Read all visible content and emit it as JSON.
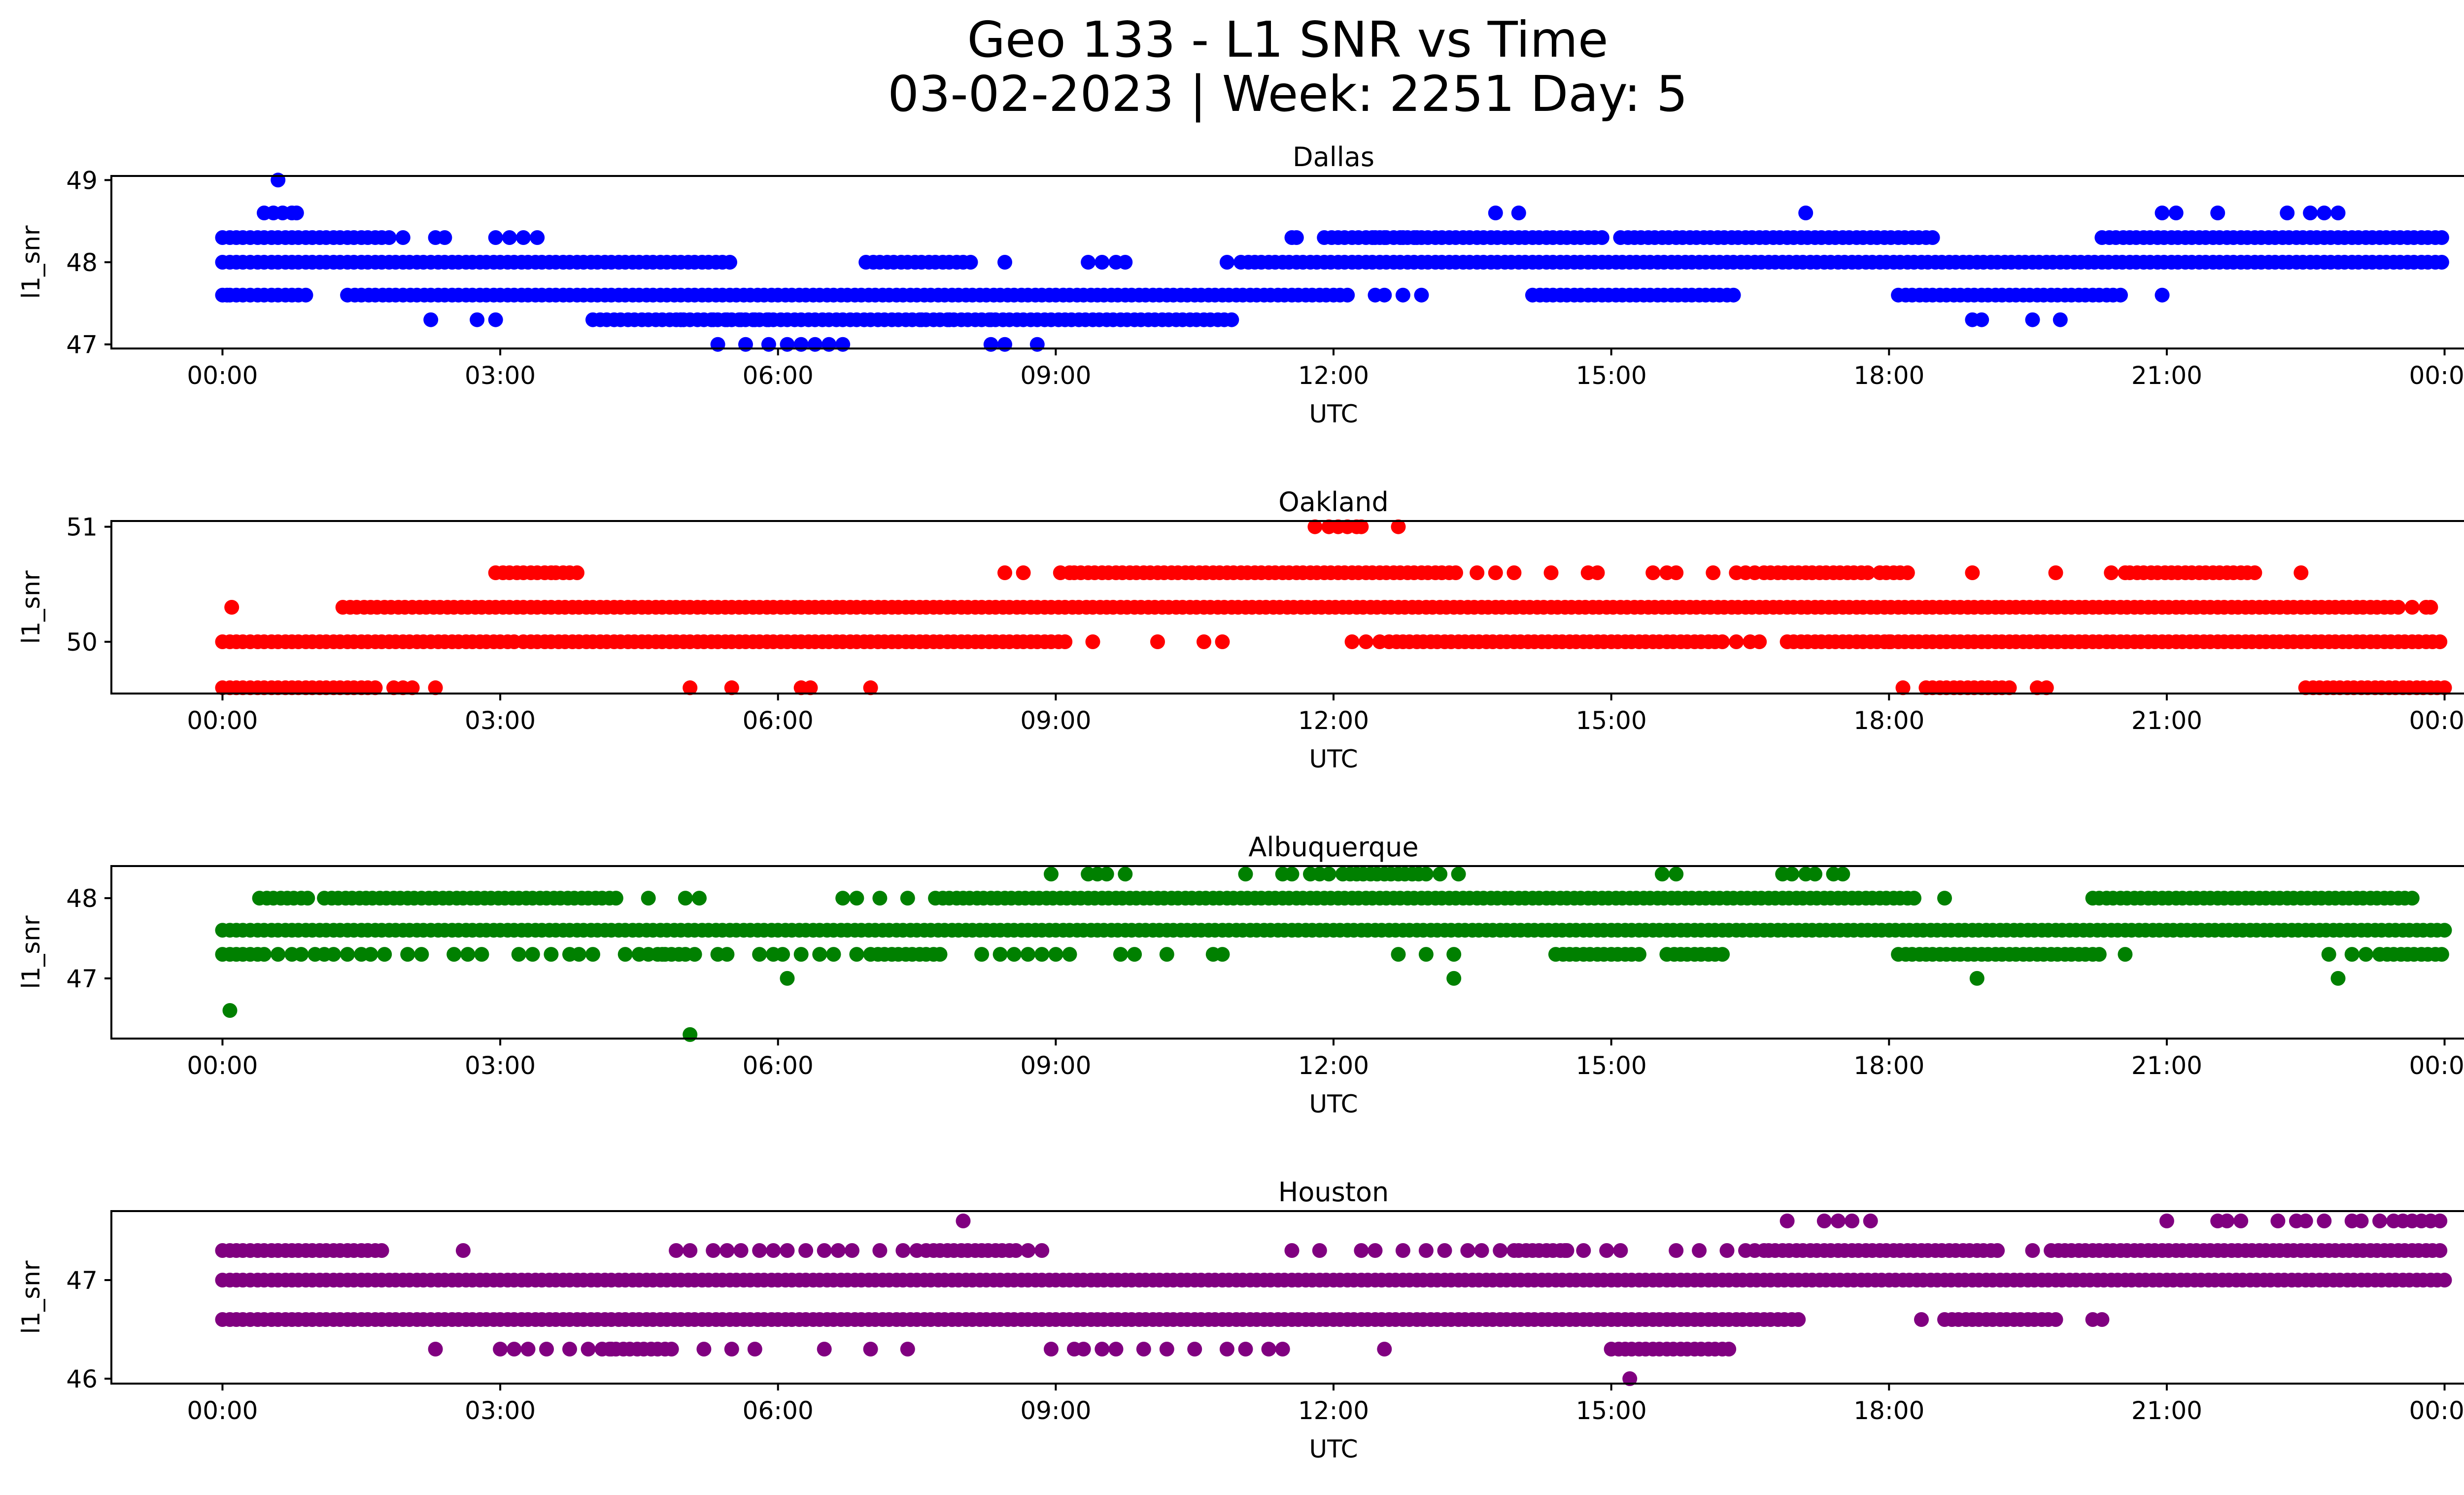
{
  "figure": {
    "title_line1": "Geo 133 - L1 SNR vs Time",
    "title_line2": "03-02-2023 | Week: 2251 Day: 5"
  },
  "chart_data": [
    {
      "type": "scatter",
      "title": "Dallas",
      "xlabel": "UTC",
      "ylabel": "l1_snr",
      "color": "#0000ff",
      "xlim": [
        -1.2,
        25.2
      ],
      "xticks": [
        "00:00",
        "03:00",
        "06:00",
        "09:00",
        "12:00",
        "15:00",
        "18:00",
        "21:00",
        "00:00"
      ],
      "ylim": [
        46.95,
        49.05
      ],
      "yticks": [
        47,
        48,
        49
      ],
      "series": [
        {
          "value": 47.0,
          "x_hours": [
            5.35,
            5.65,
            5.9,
            6.1,
            6.25,
            6.4,
            6.55,
            6.7,
            8.3,
            8.45,
            8.8
          ]
        },
        {
          "value": 47.3,
          "x_hours": [
            2.25,
            2.75,
            2.95,
            4.95,
            5.05,
            5.2,
            5.3,
            5.45,
            5.6,
            5.75,
            5.9,
            7.55,
            7.85,
            8.05,
            8.3,
            18.9,
            19.0,
            19.55,
            19.85
          ],
          "ranges_hours": [
            [
              4.0,
              10.9
            ]
          ]
        },
        {
          "value": 47.6,
          "x_hours": [
            0.0,
            0.05,
            0.3,
            12.45,
            12.55,
            12.75,
            12.95,
            20.95
          ],
          "ranges_hours": [
            [
              0.0,
              0.9
            ],
            [
              1.35,
              12.2
            ],
            [
              14.15,
              16.35
            ],
            [
              18.1,
              20.55
            ]
          ]
        },
        {
          "value": 48.0,
          "x_hours": [
            8.45,
            9.35,
            9.5,
            9.65,
            9.75,
            10.85
          ],
          "ranges_hours": [
            [
              0.0,
              5.5
            ],
            [
              6.95,
              8.1
            ],
            [
              11.0,
              24.0
            ]
          ]
        },
        {
          "value": 48.3,
          "x_hours": [
            1.95,
            2.3,
            2.4,
            2.95,
            3.1,
            3.25,
            3.4,
            11.55,
            11.6,
            12.45,
            12.55,
            12.75,
            12.9
          ],
          "ranges_hours": [
            [
              0.0,
              1.8
            ],
            [
              11.9,
              14.9
            ],
            [
              15.1,
              18.5
            ],
            [
              20.3,
              24.0
            ]
          ]
        },
        {
          "value": 48.6,
          "x_hours": [
            0.45,
            0.55,
            0.65,
            0.75,
            0.8,
            13.75,
            14.0,
            17.1,
            20.95,
            21.1,
            21.55,
            22.3,
            22.55,
            22.7,
            22.85
          ]
        },
        {
          "value": 49.0,
          "x_hours": [
            0.6
          ]
        }
      ]
    },
    {
      "type": "scatter",
      "title": "Oakland",
      "xlabel": "UTC",
      "ylabel": "l1_snr",
      "color": "#ff0000",
      "xlim": [
        -1.2,
        25.2
      ],
      "xticks": [
        "00:00",
        "03:00",
        "06:00",
        "09:00",
        "12:00",
        "15:00",
        "18:00",
        "21:00",
        "00:00"
      ],
      "ylim": [
        49.55,
        51.05
      ],
      "yticks": [
        50,
        51
      ],
      "series": [
        {
          "value": 49.6,
          "x_hours": [
            1.85,
            1.95,
            2.05,
            2.3,
            5.05,
            5.5,
            6.25,
            6.35,
            7.0,
            18.15,
            19.6,
            19.7
          ],
          "ranges_hours": [
            [
              0.0,
              1.65
            ],
            [
              18.4,
              19.35
            ],
            [
              22.5,
              24.0
            ]
          ]
        },
        {
          "value": 50.0,
          "x_hours": [
            9.4,
            10.1,
            10.6,
            10.8,
            12.2,
            12.35,
            12.5,
            16.35,
            16.5,
            16.6,
            18.0
          ],
          "ranges_hours": [
            [
              0.0,
              3.15
            ],
            [
              3.25,
              9.15
            ],
            [
              12.6,
              16.25
            ],
            [
              16.9,
              24.0
            ]
          ]
        },
        {
          "value": 50.3,
          "x_hours": [
            0.1,
            23.65,
            23.8,
            23.85
          ],
          "ranges_hours": [
            [
              1.3,
              23.5
            ]
          ]
        },
        {
          "value": 50.6,
          "x_hours": [
            8.45,
            8.65,
            9.05,
            9.15,
            13.55,
            13.75,
            13.95,
            14.35,
            14.75,
            14.85,
            15.45,
            15.6,
            15.7,
            16.1,
            16.35,
            16.45,
            16.55,
            18.9,
            19.8,
            20.4,
            20.55,
            22.45
          ],
          "ranges_hours": [
            [
              2.95,
              3.55
            ],
            [
              3.6,
              3.85
            ],
            [
              9.2,
              13.35
            ],
            [
              16.65,
              17.8
            ],
            [
              17.9,
              18.2
            ],
            [
              20.6,
              21.95
            ]
          ]
        },
        {
          "value": 51.0,
          "x_hours": [
            11.8,
            11.95,
            12.05,
            12.15,
            12.25,
            12.3,
            12.7
          ]
        }
      ]
    },
    {
      "type": "scatter",
      "title": "Albuquerque",
      "xlabel": "UTC",
      "ylabel": "l1_snr",
      "color": "#008000",
      "xlim": [
        -1.2,
        25.2
      ],
      "xticks": [
        "00:00",
        "03:00",
        "06:00",
        "09:00",
        "12:00",
        "15:00",
        "18:00",
        "21:00",
        "00:00"
      ],
      "ylim": [
        46.25,
        48.4
      ],
      "yticks": [
        47,
        48
      ],
      "series": [
        {
          "value": 46.3,
          "x_hours": [
            5.05
          ]
        },
        {
          "value": 46.6,
          "x_hours": [
            0.08
          ]
        },
        {
          "value": 47.0,
          "x_hours": [
            6.1,
            13.3,
            18.95,
            22.85
          ]
        },
        {
          "value": 47.3,
          "x_hours": [
            0.6,
            0.75,
            0.85,
            1.0,
            1.1,
            1.2,
            1.35,
            1.5,
            1.6,
            1.75,
            2.0,
            2.15,
            2.5,
            2.65,
            2.8,
            3.2,
            3.35,
            3.55,
            3.75,
            3.85,
            4.0,
            4.35,
            4.5,
            4.6,
            4.75,
            4.85,
            5.0,
            5.1,
            5.35,
            5.45,
            5.8,
            5.95,
            6.05,
            6.25,
            6.45,
            6.6,
            6.85,
            8.2,
            8.4,
            8.55,
            8.7,
            8.85,
            9.0,
            9.15,
            9.7,
            9.85,
            10.2,
            10.7,
            10.8,
            12.7,
            13.0,
            13.3,
            20.55,
            22.75,
            23.0,
            23.15
          ],
          "ranges_hours": [
            [
              0.0,
              0.5
            ],
            [
              4.7,
              5.0
            ],
            [
              7.0,
              7.8
            ],
            [
              14.4,
              15.3
            ],
            [
              15.6,
              16.25
            ],
            [
              18.1,
              20.3
            ],
            [
              23.3,
              24.0
            ]
          ]
        },
        {
          "value": 47.6,
          "ranges_hours": [
            [
              0.0,
              24.0
            ]
          ]
        },
        {
          "value": 48.0,
          "x_hours": [
            4.6,
            5.0,
            5.15,
            6.7,
            6.85,
            7.1,
            7.4,
            18.6
          ],
          "ranges_hours": [
            [
              0.4,
              0.95
            ],
            [
              1.1,
              4.3
            ],
            [
              7.7,
              18.3
            ],
            [
              20.2,
              23.7
            ]
          ]
        },
        {
          "value": 48.3,
          "x_hours": [
            8.95,
            9.35,
            9.45,
            9.55,
            9.75,
            11.05,
            11.45,
            11.55,
            11.75,
            11.85,
            11.95,
            13.15,
            13.35,
            15.55,
            15.7,
            16.85,
            16.95,
            17.1,
            17.2,
            17.4,
            17.5
          ],
          "ranges_hours": [
            [
              12.1,
              13.0
            ]
          ]
        }
      ]
    },
    {
      "type": "scatter",
      "title": "Houston",
      "xlabel": "UTC",
      "ylabel": "l1_snr",
      "color": "#800080",
      "xlim": [
        -1.2,
        25.2
      ],
      "xticks": [
        "00:00",
        "03:00",
        "06:00",
        "09:00",
        "12:00",
        "15:00",
        "18:00",
        "21:00",
        "00:00"
      ],
      "ylim": [
        45.95,
        47.7
      ],
      "yticks": [
        46,
        47
      ],
      "series": [
        {
          "value": 46.0,
          "x_hours": [
            15.2
          ]
        },
        {
          "value": 46.3,
          "x_hours": [
            2.3,
            3.0,
            3.15,
            3.3,
            3.5,
            3.75,
            3.95,
            4.2,
            5.2,
            5.5,
            5.75,
            6.5,
            7.0,
            7.4,
            8.95,
            9.2,
            9.3,
            9.5,
            9.65,
            9.95,
            10.2,
            10.5,
            10.85,
            11.05,
            11.3,
            11.45,
            12.55
          ],
          "ranges_hours": [
            [
              4.1,
              4.9
            ],
            [
              15.0,
              16.3
            ]
          ]
        },
        {
          "value": 46.6,
          "x_hours": [
            18.35,
            20.2,
            20.3
          ],
          "ranges_hours": [
            [
              0.0,
              17.05
            ],
            [
              18.6,
              19.85
            ]
          ]
        },
        {
          "value": 47.0,
          "ranges_hours": [
            [
              0.0,
              24.0
            ]
          ]
        },
        {
          "value": 47.3,
          "x_hours": [
            2.6,
            4.9,
            5.05,
            5.3,
            5.45,
            5.6,
            5.8,
            5.95,
            6.1,
            6.3,
            6.5,
            6.65,
            6.8,
            7.1,
            7.35,
            7.5,
            8.7,
            8.85,
            11.55,
            11.85,
            12.3,
            12.45,
            12.75,
            13.0,
            13.2,
            13.45,
            13.6,
            13.8,
            13.95,
            14.3,
            14.5,
            14.7,
            14.95,
            15.1,
            15.7,
            15.95,
            16.25,
            16.45,
            16.55,
            16.65,
            19.55
          ],
          "ranges_hours": [
            [
              0.0,
              1.75
            ],
            [
              7.6,
              8.6
            ],
            [
              14.0,
              14.55
            ],
            [
              16.7,
              19.2
            ],
            [
              19.75,
              24.0
            ]
          ]
        },
        {
          "value": 47.6,
          "x_hours": [
            8.0,
            16.9,
            17.3,
            17.45,
            17.6,
            17.8,
            21.0,
            21.55,
            21.65,
            21.8,
            22.2,
            22.4,
            22.5,
            22.7,
            23.0,
            23.1,
            23.3,
            23.45,
            23.55,
            23.65,
            23.75,
            23.85,
            23.95
          ]
        }
      ]
    }
  ]
}
